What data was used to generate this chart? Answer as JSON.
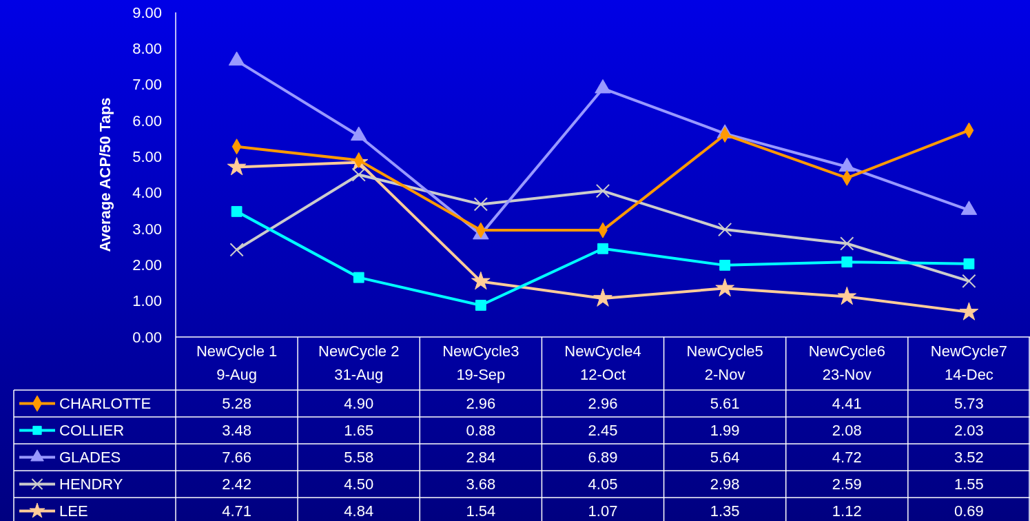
{
  "chart_data": {
    "type": "line",
    "ylabel": "Average ACP/50 Taps",
    "categories": [
      "NewCycle 1\n9-Aug",
      "NewCycle 2\n31-Aug",
      "NewCycle3\n19-Sep",
      "NewCycle4\n12-Oct",
      "NewCycle5\n2-Nov",
      "NewCycle6\n23-Nov",
      "NewCycle7\n14-Dec"
    ],
    "ylim": [
      0,
      9
    ],
    "yticks": [
      {
        "value": 0,
        "label": "0.00"
      },
      {
        "value": 1,
        "label": "1.00"
      },
      {
        "value": 2,
        "label": "2.00"
      },
      {
        "value": 3,
        "label": "3.00"
      },
      {
        "value": 4,
        "label": "4.00"
      },
      {
        "value": 5,
        "label": "5.00"
      },
      {
        "value": 6,
        "label": "6.00"
      },
      {
        "value": 7,
        "label": "7.00"
      },
      {
        "value": 8,
        "label": "8.00"
      },
      {
        "value": 9,
        "label": "9.00"
      }
    ],
    "grid": false,
    "legend": "bottom",
    "line_style": "solid",
    "series": [
      {
        "name": "CHARLOTTE",
        "color": "#ff9900",
        "marker": "diamond",
        "values": [
          5.28,
          4.9,
          2.96,
          2.96,
          5.61,
          4.41,
          5.73
        ],
        "value_labels": [
          "5.28",
          "4.90",
          "2.96",
          "2.96",
          "5.61",
          "4.41",
          "5.73"
        ]
      },
      {
        "name": "COLLIER",
        "color": "#00ffff",
        "marker": "square",
        "values": [
          3.48,
          1.65,
          0.88,
          2.45,
          1.99,
          2.08,
          2.03
        ],
        "value_labels": [
          "3.48",
          "1.65",
          "0.88",
          "2.45",
          "1.99",
          "2.08",
          "2.03"
        ]
      },
      {
        "name": "GLADES",
        "color": "#9999ff",
        "marker": "triangle",
        "values": [
          7.66,
          5.58,
          2.84,
          6.89,
          5.64,
          4.72,
          3.52
        ],
        "value_labels": [
          "7.66",
          "5.58",
          "2.84",
          "6.89",
          "5.64",
          "4.72",
          "3.52"
        ]
      },
      {
        "name": "HENDRY",
        "color": "#cccccc",
        "marker": "cross",
        "values": [
          2.42,
          4.5,
          3.68,
          4.05,
          2.98,
          2.59,
          1.55
        ],
        "value_labels": [
          "2.42",
          "4.50",
          "3.68",
          "4.05",
          "2.98",
          "2.59",
          "1.55"
        ]
      },
      {
        "name": "LEE",
        "color": "#ffcc99",
        "marker": "star",
        "values": [
          4.71,
          4.84,
          1.54,
          1.07,
          1.35,
          1.12,
          0.69
        ],
        "value_labels": [
          "4.71",
          "4.84",
          "1.54",
          "1.07",
          "1.35",
          "1.12",
          "0.69"
        ]
      }
    ]
  }
}
